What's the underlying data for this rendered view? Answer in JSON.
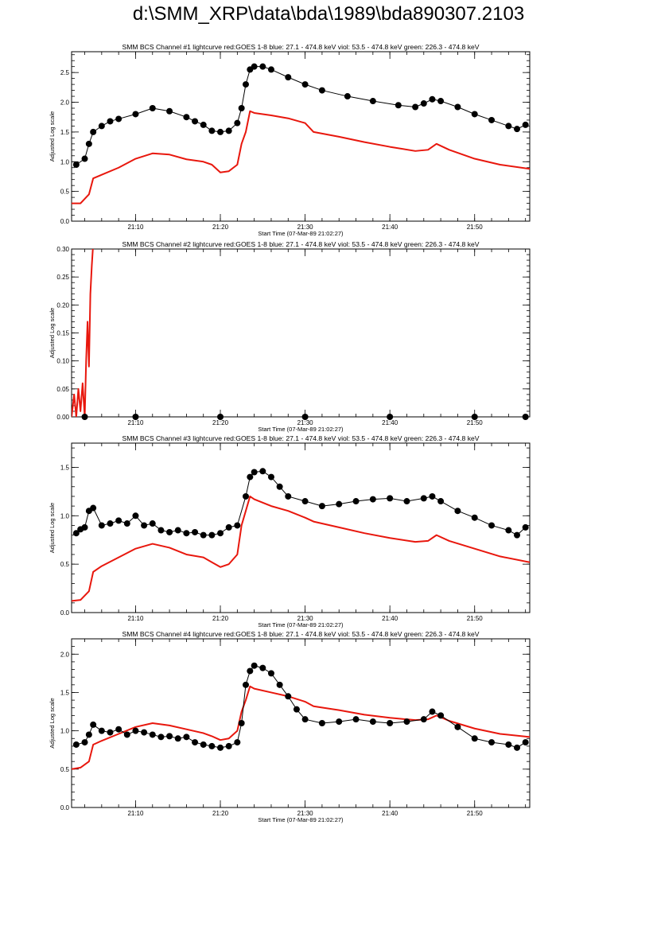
{
  "page": {
    "title": "d:\\SMM_XRP\\data\\bda\\1989\\bda890307.2103"
  },
  "colors": {
    "goes": "#e8170d",
    "bcs": "#000000",
    "frame": "#000000"
  },
  "chart_data": [
    {
      "type": "line",
      "title": "SMM BCS Channel #1 lightcurve  red:GOES 1-8  blue: 27.1 - 474.8 keV  viol: 53.5 - 474.8 keV  green: 226.3 - 474.8 keV",
      "xlabel": "Start Time (07-Mar-89 21:02:27)",
      "ylabel": "Adjusted Log scale",
      "xlim": [
        "21:02:27",
        "21:56:30"
      ],
      "x_ticks": [
        "21:10",
        "21:20",
        "21:30",
        "21:40",
        "21:50"
      ],
      "ylim": [
        0,
        2.85
      ],
      "y_ticks": [
        "0.0",
        "0.5",
        "1.0",
        "1.5",
        "2.0",
        "2.5"
      ],
      "y_tick_values": [
        0,
        0.5,
        1.0,
        1.5,
        2.0,
        2.5
      ],
      "series": [
        {
          "style": "line",
          "color": "#e8170d",
          "x": [
            "21:02:27",
            "21:03:30",
            "21:04:30",
            "21:05:00",
            "21:06:00",
            "21:08:00",
            "21:10:00",
            "21:12:00",
            "21:14:00",
            "21:16:00",
            "21:18:00",
            "21:19:00",
            "21:20:00",
            "21:21:00",
            "21:22:00",
            "21:22:30",
            "21:23:00",
            "21:23:30",
            "21:24:00",
            "21:26:00",
            "21:28:00",
            "21:30:00",
            "21:31:00",
            "21:34:00",
            "21:37:00",
            "21:40:00",
            "21:43:00",
            "21:44:30",
            "21:45:30",
            "21:47:00",
            "21:50:00",
            "21:53:00",
            "21:56:30"
          ],
          "y": [
            0.3,
            0.3,
            0.45,
            0.72,
            0.78,
            0.9,
            1.05,
            1.14,
            1.12,
            1.04,
            1.0,
            0.95,
            0.82,
            0.84,
            0.95,
            1.3,
            1.5,
            1.85,
            1.82,
            1.78,
            1.73,
            1.65,
            1.5,
            1.42,
            1.33,
            1.25,
            1.18,
            1.2,
            1.3,
            1.2,
            1.05,
            0.95,
            0.88
          ]
        },
        {
          "style": "markers",
          "color": "#000000",
          "x": [
            "21:03:00",
            "21:04:00",
            "21:04:30",
            "21:05:00",
            "21:06:00",
            "21:07:00",
            "21:08:00",
            "21:10:00",
            "21:12:00",
            "21:14:00",
            "21:16:00",
            "21:17:00",
            "21:18:00",
            "21:19:00",
            "21:20:00",
            "21:21:00",
            "21:22:00",
            "21:22:30",
            "21:23:00",
            "21:23:30",
            "21:24:00",
            "21:25:00",
            "21:26:00",
            "21:28:00",
            "21:30:00",
            "21:32:00",
            "21:35:00",
            "21:38:00",
            "21:41:00",
            "21:43:00",
            "21:44:00",
            "21:45:00",
            "21:46:00",
            "21:48:00",
            "21:50:00",
            "21:52:00",
            "21:54:00",
            "21:55:00",
            "21:56:00"
          ],
          "y": [
            0.95,
            1.05,
            1.3,
            1.5,
            1.6,
            1.68,
            1.72,
            1.8,
            1.9,
            1.85,
            1.75,
            1.68,
            1.62,
            1.52,
            1.5,
            1.52,
            1.65,
            1.9,
            2.3,
            2.55,
            2.6,
            2.6,
            2.55,
            2.42,
            2.3,
            2.2,
            2.1,
            2.02,
            1.95,
            1.92,
            1.98,
            2.05,
            2.02,
            1.92,
            1.8,
            1.7,
            1.6,
            1.55,
            1.62
          ]
        }
      ]
    },
    {
      "type": "line",
      "title": "SMM BCS Channel #2 lightcurve  red:GOES 1-8  blue: 27.1 - 474.8 keV  viol: 53.5 - 474.8 keV  green: 226.3 - 474.8 keV",
      "xlabel": "Start Time (07-Mar-89 21:02:27)",
      "ylabel": "Adjusted Log scale",
      "xlim": [
        "21:02:27",
        "21:56:30"
      ],
      "x_ticks": [
        "21:10",
        "21:20",
        "21:30",
        "21:40",
        "21:50"
      ],
      "ylim": [
        0,
        0.3
      ],
      "y_ticks": [
        "0.00",
        "0.05",
        "0.10",
        "0.15",
        "0.20",
        "0.25",
        "0.30"
      ],
      "y_tick_values": [
        0,
        0.05,
        0.1,
        0.15,
        0.2,
        0.25,
        0.3
      ],
      "series": [
        {
          "style": "line",
          "color": "#e8170d",
          "x": [
            "21:02:27",
            "21:02:45",
            "21:03:00",
            "21:03:15",
            "21:03:30",
            "21:03:45",
            "21:04:00",
            "21:04:10",
            "21:04:20",
            "21:04:30",
            "21:04:40",
            "21:04:50",
            "21:05:00",
            "21:05:15"
          ],
          "y": [
            0.0,
            0.04,
            0.0,
            0.05,
            0.01,
            0.06,
            0.0,
            0.1,
            0.17,
            0.09,
            0.22,
            0.27,
            0.31,
            0.33
          ]
        },
        {
          "style": "markers",
          "color": "#000000",
          "x": [
            "21:04:00",
            "21:10:00",
            "21:20:00",
            "21:30:00",
            "21:40:00",
            "21:50:00",
            "21:56:00"
          ],
          "y": [
            0,
            0,
            0,
            0,
            0,
            0,
            0
          ]
        }
      ]
    },
    {
      "type": "line",
      "title": "SMM BCS Channel #3 lightcurve  red:GOES 1-8  blue: 27.1 - 474.8 keV  viol: 53.5 - 474.8 keV  green: 226.3 - 474.8 keV",
      "xlabel": "Start Time (07-Mar-89 21:02:27)",
      "ylabel": "Adjusted Log scale",
      "xlim": [
        "21:02:27",
        "21:56:30"
      ],
      "x_ticks": [
        "21:10",
        "21:20",
        "21:30",
        "21:40",
        "21:50"
      ],
      "ylim": [
        0,
        1.75
      ],
      "y_ticks": [
        "0.0",
        "0.5",
        "1.0",
        "1.5"
      ],
      "y_tick_values": [
        0,
        0.5,
        1.0,
        1.5
      ],
      "series": [
        {
          "style": "line",
          "color": "#e8170d",
          "x": [
            "21:02:27",
            "21:03:30",
            "21:04:30",
            "21:05:00",
            "21:06:00",
            "21:08:00",
            "21:10:00",
            "21:12:00",
            "21:14:00",
            "21:16:00",
            "21:18:00",
            "21:19:00",
            "21:20:00",
            "21:21:00",
            "21:22:00",
            "21:22:30",
            "21:23:00",
            "21:23:30",
            "21:24:00",
            "21:26:00",
            "21:28:00",
            "21:30:00",
            "21:31:00",
            "21:34:00",
            "21:37:00",
            "21:40:00",
            "21:43:00",
            "21:44:30",
            "21:45:30",
            "21:47:00",
            "21:50:00",
            "21:53:00",
            "21:56:30"
          ],
          "y": [
            0.12,
            0.13,
            0.22,
            0.42,
            0.48,
            0.57,
            0.66,
            0.71,
            0.67,
            0.6,
            0.57,
            0.52,
            0.47,
            0.5,
            0.6,
            0.9,
            1.05,
            1.2,
            1.17,
            1.1,
            1.05,
            0.98,
            0.94,
            0.88,
            0.82,
            0.77,
            0.73,
            0.74,
            0.8,
            0.74,
            0.66,
            0.58,
            0.52
          ]
        },
        {
          "style": "markers",
          "color": "#000000",
          "x": [
            "21:03:00",
            "21:03:30",
            "21:04:00",
            "21:04:30",
            "21:05:00",
            "21:06:00",
            "21:07:00",
            "21:08:00",
            "21:09:00",
            "21:10:00",
            "21:11:00",
            "21:12:00",
            "21:13:00",
            "21:14:00",
            "21:15:00",
            "21:16:00",
            "21:17:00",
            "21:18:00",
            "21:19:00",
            "21:20:00",
            "21:21:00",
            "21:22:00",
            "21:23:00",
            "21:23:30",
            "21:24:00",
            "21:25:00",
            "21:26:00",
            "21:27:00",
            "21:28:00",
            "21:30:00",
            "21:32:00",
            "21:34:00",
            "21:36:00",
            "21:38:00",
            "21:40:00",
            "21:42:00",
            "21:44:00",
            "21:45:00",
            "21:46:00",
            "21:48:00",
            "21:50:00",
            "21:52:00",
            "21:54:00",
            "21:55:00",
            "21:56:00"
          ],
          "y": [
            0.82,
            0.86,
            0.88,
            1.05,
            1.08,
            0.9,
            0.92,
            0.95,
            0.92,
            1.0,
            0.9,
            0.92,
            0.85,
            0.83,
            0.85,
            0.82,
            0.83,
            0.8,
            0.8,
            0.82,
            0.88,
            0.9,
            1.2,
            1.4,
            1.45,
            1.46,
            1.4,
            1.3,
            1.2,
            1.15,
            1.1,
            1.12,
            1.15,
            1.17,
            1.18,
            1.15,
            1.18,
            1.2,
            1.15,
            1.05,
            0.98,
            0.9,
            0.85,
            0.8,
            0.88
          ]
        }
      ]
    },
    {
      "type": "line",
      "title": "SMM BCS Channel #4 lightcurve  red:GOES 1-8  blue: 27.1 - 474.8 keV  viol: 53.5 - 474.8 keV  green: 226.3 - 474.8 keV",
      "xlabel": "Start Time (07-Mar-89 21:02:27)",
      "ylabel": "Adjusted Log scale",
      "xlim": [
        "21:02:27",
        "21:56:30"
      ],
      "x_ticks": [
        "21:10",
        "21:20",
        "21:30",
        "21:40",
        "21:50"
      ],
      "ylim": [
        0,
        2.2
      ],
      "y_ticks": [
        "0.0",
        "0.5",
        "1.0",
        "1.5",
        "2.0"
      ],
      "y_tick_values": [
        0,
        0.5,
        1.0,
        1.5,
        2.0
      ],
      "series": [
        {
          "style": "line",
          "color": "#e8170d",
          "x": [
            "21:02:27",
            "21:03:30",
            "21:04:30",
            "21:05:00",
            "21:06:00",
            "21:08:00",
            "21:10:00",
            "21:12:00",
            "21:14:00",
            "21:16:00",
            "21:18:00",
            "21:19:00",
            "21:20:00",
            "21:21:00",
            "21:22:00",
            "21:22:30",
            "21:23:00",
            "21:23:30",
            "21:24:00",
            "21:26:00",
            "21:28:00",
            "21:30:00",
            "21:31:00",
            "21:34:00",
            "21:37:00",
            "21:40:00",
            "21:43:00",
            "21:44:30",
            "21:45:30",
            "21:47:00",
            "21:50:00",
            "21:53:00",
            "21:56:30"
          ],
          "y": [
            0.5,
            0.52,
            0.6,
            0.82,
            0.87,
            0.96,
            1.05,
            1.1,
            1.07,
            1.02,
            0.97,
            0.93,
            0.88,
            0.9,
            1.0,
            1.25,
            1.4,
            1.58,
            1.55,
            1.5,
            1.45,
            1.38,
            1.32,
            1.27,
            1.21,
            1.17,
            1.14,
            1.15,
            1.2,
            1.13,
            1.03,
            0.96,
            0.92
          ]
        },
        {
          "style": "markers",
          "color": "#000000",
          "x": [
            "21:03:00",
            "21:04:00",
            "21:04:30",
            "21:05:00",
            "21:06:00",
            "21:07:00",
            "21:08:00",
            "21:09:00",
            "21:10:00",
            "21:11:00",
            "21:12:00",
            "21:13:00",
            "21:14:00",
            "21:15:00",
            "21:16:00",
            "21:17:00",
            "21:18:00",
            "21:19:00",
            "21:20:00",
            "21:21:00",
            "21:22:00",
            "21:22:30",
            "21:23:00",
            "21:23:30",
            "21:24:00",
            "21:25:00",
            "21:26:00",
            "21:27:00",
            "21:28:00",
            "21:29:00",
            "21:30:00",
            "21:32:00",
            "21:34:00",
            "21:36:00",
            "21:38:00",
            "21:40:00",
            "21:42:00",
            "21:44:00",
            "21:45:00",
            "21:46:00",
            "21:48:00",
            "21:50:00",
            "21:52:00",
            "21:54:00",
            "21:55:00",
            "21:56:00"
          ],
          "y": [
            0.82,
            0.85,
            0.95,
            1.08,
            1.0,
            0.98,
            1.02,
            0.95,
            1.0,
            0.98,
            0.95,
            0.92,
            0.93,
            0.9,
            0.92,
            0.85,
            0.82,
            0.8,
            0.78,
            0.8,
            0.85,
            1.1,
            1.6,
            1.78,
            1.85,
            1.82,
            1.75,
            1.6,
            1.45,
            1.28,
            1.15,
            1.1,
            1.12,
            1.15,
            1.12,
            1.1,
            1.12,
            1.15,
            1.25,
            1.2,
            1.05,
            0.9,
            0.85,
            0.82,
            0.78,
            0.85
          ]
        }
      ]
    }
  ]
}
